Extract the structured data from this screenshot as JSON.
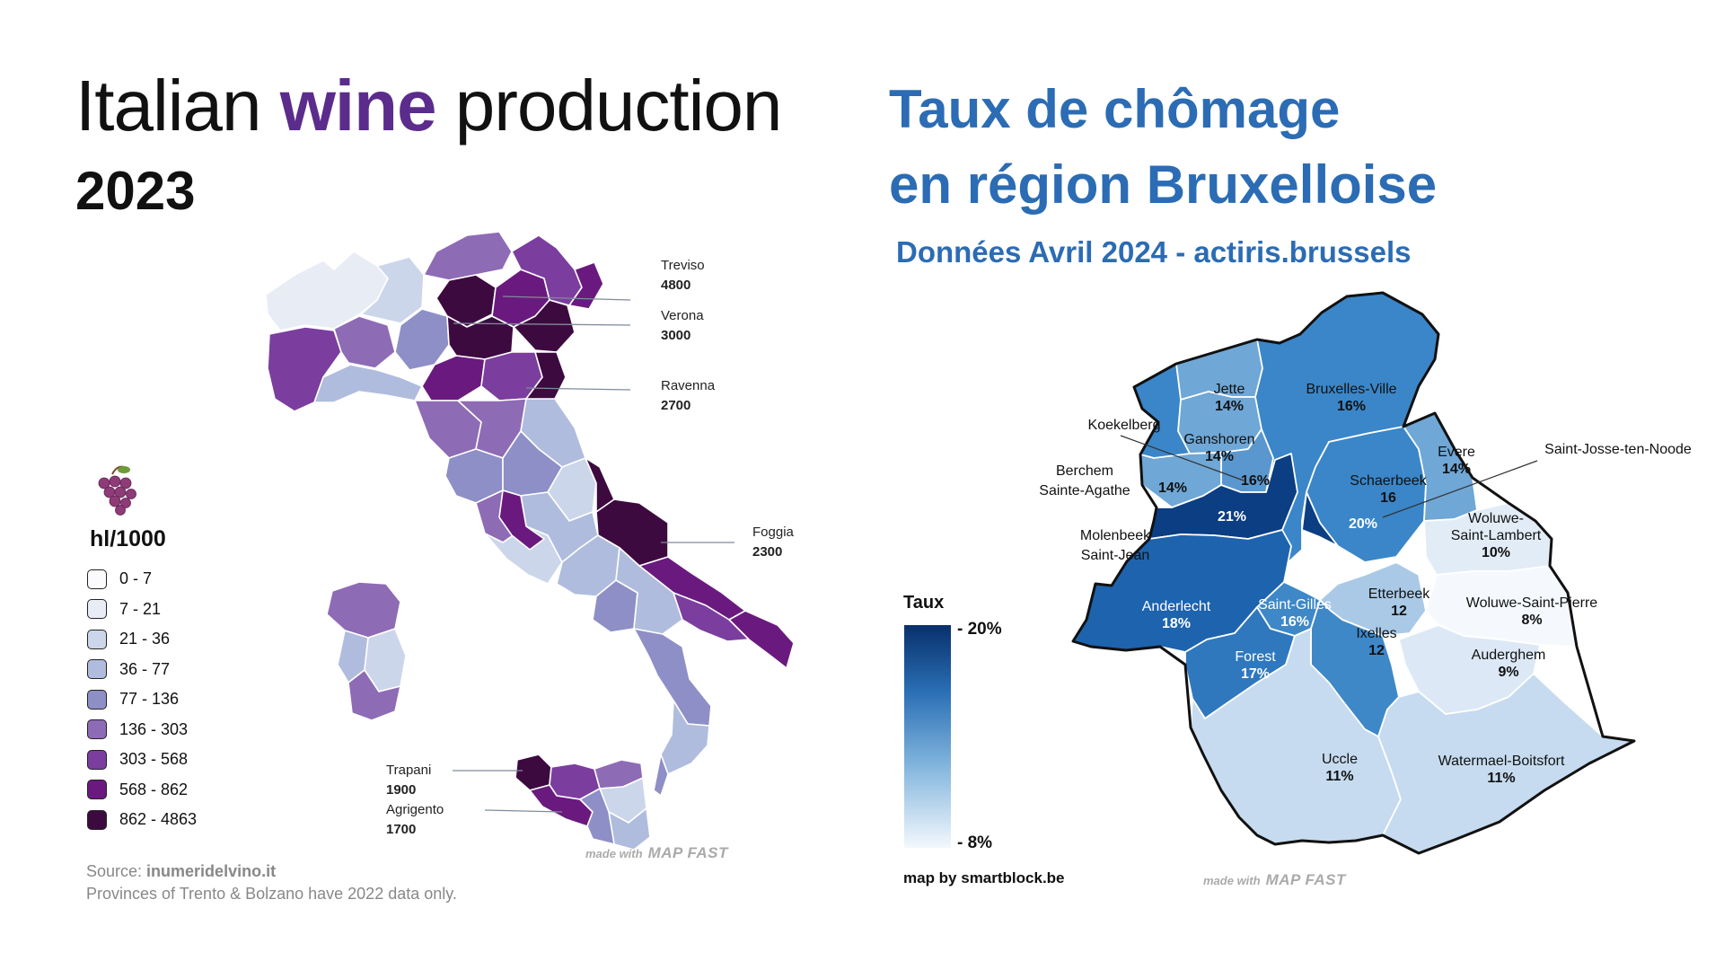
{
  "italy": {
    "title_pre": "Italian ",
    "title_accent": "wine",
    "title_post": " production",
    "year": "2023",
    "accent_color": "#5B2C8C",
    "legend_title": "hl/1000",
    "legend_icon": "grape-icon",
    "legend": [
      {
        "label": "0 - 7",
        "color": "#FBFAFD"
      },
      {
        "label": "7 - 21",
        "color": "#E8ECF5"
      },
      {
        "label": "21 - 36",
        "color": "#CCD6EA"
      },
      {
        "label": "36 - 77",
        "color": "#AFBCDD"
      },
      {
        "label": "77 - 136",
        "color": "#8E8FC6"
      },
      {
        "label": "136 - 303",
        "color": "#8E6BB5"
      },
      {
        "label": "303 - 568",
        "color": "#7B3E9E"
      },
      {
        "label": "568 - 862",
        "color": "#6A1A7E"
      },
      {
        "label": "862 - 4863",
        "color": "#3D0A40"
      }
    ],
    "annotations": [
      {
        "name": "Treviso",
        "value": "4800"
      },
      {
        "name": "Verona",
        "value": "3000"
      },
      {
        "name": "Ravenna",
        "value": "2700"
      },
      {
        "name": "Foggia",
        "value": "2300"
      },
      {
        "name": "Trapani",
        "value": "1900"
      },
      {
        "name": "Agrigento",
        "value": "1700"
      }
    ],
    "source_prefix": "Source: ",
    "source_name": "inumeridelvino.it",
    "note": "Provinces of Trento & Bolzano have 2022 data only.",
    "madewith": "made with",
    "brand": "MAP FAST"
  },
  "brussels": {
    "title_line1": "Taux de chômage",
    "title_line2": "en région Bruxelloise",
    "subtitle": "Données Avril 2024 - actiris.brussels",
    "accent_color": "#2B6CB4",
    "legend_title": "Taux",
    "legend_max": "- 20%",
    "legend_min": "- 8%",
    "credit": "map by smartblock.be",
    "madewith": "made with",
    "brand": "MAP FAST",
    "communes": [
      {
        "name": "Bruxelles-Ville",
        "value": "16%",
        "color": "#3A86C8"
      },
      {
        "name": "Jette",
        "value": "14%",
        "color": "#6FA7D6"
      },
      {
        "name": "Ganshoren",
        "value": "14%",
        "color": "#6FA7D6"
      },
      {
        "name": "Koekelberg",
        "value": "16%",
        "color": "#5A97CE"
      },
      {
        "name": "Berchem Sainte-Agathe",
        "value": "14%",
        "color": "#6FA7D6"
      },
      {
        "name": "Molenbeek Saint-Jean",
        "value": "21%",
        "color": "#0B3E82"
      },
      {
        "name": "Anderlecht",
        "value": "18%",
        "color": "#1E63AD"
      },
      {
        "name": "Saint-Gilles",
        "value": "16%",
        "color": "#3E88C8"
      },
      {
        "name": "Forest",
        "value": "17%",
        "color": "#2F78BE"
      },
      {
        "name": "Schaerbeek",
        "value": "16",
        "color": "#3A86C8"
      },
      {
        "name": "Saint-Josse-ten-Noode",
        "value": "20%",
        "color": "#0B3E82"
      },
      {
        "name": "Evere",
        "value": "14%",
        "color": "#6FA7D6"
      },
      {
        "name": "Etterbeek",
        "value": "12",
        "color": "#A9C9E6"
      },
      {
        "name": "Ixelles",
        "value": "12",
        "color": "#3E88C8"
      },
      {
        "name": "Woluwe-Saint-Lambert",
        "value": "10%",
        "color": "#E2ECF7"
      },
      {
        "name": "Woluwe-Saint-Pierre",
        "value": "8%",
        "color": "#F5F9FD"
      },
      {
        "name": "Auderghem",
        "value": "9%",
        "color": "#DCE8F5"
      },
      {
        "name": "Uccle",
        "value": "11%",
        "color": "#C6DBEF"
      },
      {
        "name": "Watermael-Boitsfort",
        "value": "11%",
        "color": "#C6DBEF"
      }
    ]
  }
}
